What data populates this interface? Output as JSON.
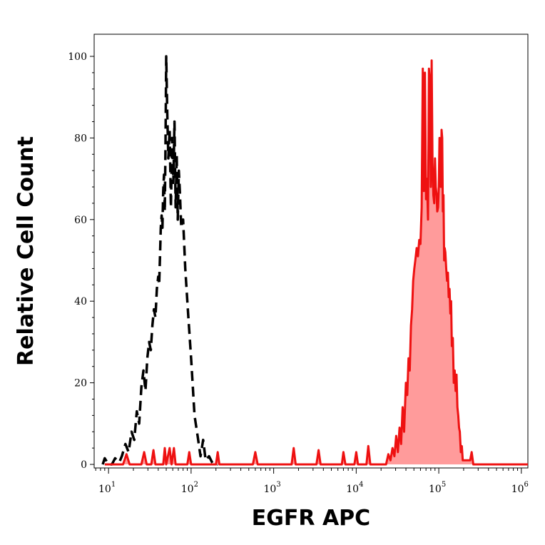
{
  "chart_data": {
    "type": "line",
    "title": "",
    "xlabel": "EGFR APC",
    "ylabel": "Relative Cell Count",
    "x_scale": "log",
    "xlim": [
      6.7,
      1200000
    ],
    "ylim": [
      0,
      100
    ],
    "grid": false,
    "legend": "none",
    "x_ticks": [
      {
        "value": 10,
        "base": "10",
        "exp": "1"
      },
      {
        "value": 100,
        "base": "10",
        "exp": "2"
      },
      {
        "value": 1000,
        "base": "10",
        "exp": "3"
      },
      {
        "value": 10000,
        "base": "10",
        "exp": "4"
      },
      {
        "value": 100000,
        "base": "10",
        "exp": "5"
      },
      {
        "value": 1000000,
        "base": "10",
        "exp": "6"
      }
    ],
    "y_ticks": [
      {
        "value": 0,
        "label": "0"
      },
      {
        "value": 20,
        "label": "20"
      },
      {
        "value": 40,
        "label": "40"
      },
      {
        "value": 60,
        "label": "60"
      },
      {
        "value": 80,
        "label": "80"
      },
      {
        "value": 100,
        "label": "100"
      }
    ],
    "series": [
      {
        "style": "dashed",
        "color": "#000000",
        "fill": "none",
        "points": [
          [
            8.5,
            0
          ],
          [
            9,
            1.5
          ],
          [
            10,
            0
          ],
          [
            11,
            0
          ],
          [
            12,
            1.5
          ],
          [
            13.5,
            0.5
          ],
          [
            14.5,
            2
          ],
          [
            16,
            5
          ],
          [
            17.5,
            3
          ],
          [
            19,
            8
          ],
          [
            20.5,
            6
          ],
          [
            22,
            13
          ],
          [
            23.5,
            10
          ],
          [
            25,
            19
          ],
          [
            26.5,
            23
          ],
          [
            28,
            18
          ],
          [
            29.5,
            26
          ],
          [
            31,
            30
          ],
          [
            32.5,
            28
          ],
          [
            34,
            34
          ],
          [
            35.5,
            38
          ],
          [
            37,
            36
          ],
          [
            38.5,
            43
          ],
          [
            40,
            46
          ],
          [
            41,
            44
          ],
          [
            42,
            51
          ],
          [
            43,
            58
          ],
          [
            44,
            61
          ],
          [
            45,
            58
          ],
          [
            46,
            67
          ],
          [
            47,
            71
          ],
          [
            48,
            62
          ],
          [
            49,
            78
          ],
          [
            50,
            100
          ],
          [
            51.5,
            86
          ],
          [
            53,
            75
          ],
          [
            55,
            82
          ],
          [
            57,
            63
          ],
          [
            59,
            80
          ],
          [
            61,
            69
          ],
          [
            63,
            84
          ],
          [
            65,
            63
          ],
          [
            67,
            76
          ],
          [
            69,
            60
          ],
          [
            71,
            72
          ],
          [
            73,
            67
          ],
          [
            76,
            58
          ],
          [
            80,
            60
          ],
          [
            85,
            48
          ],
          [
            92,
            37
          ],
          [
            100,
            26
          ],
          [
            110,
            12
          ],
          [
            120,
            7
          ],
          [
            130,
            2
          ],
          [
            140,
            6
          ],
          [
            150,
            1
          ],
          [
            165,
            2
          ],
          [
            185,
            0
          ],
          [
            210,
            0
          ]
        ]
      },
      {
        "style": "solid",
        "color": "#ee1111",
        "fill": "#ff9b9b",
        "points": [
          [
            9,
            0
          ],
          [
            15,
            0
          ],
          [
            16.5,
            2.5
          ],
          [
            18,
            0
          ],
          [
            25,
            0
          ],
          [
            27,
            3
          ],
          [
            29,
            0
          ],
          [
            33,
            0
          ],
          [
            35,
            3.5
          ],
          [
            37,
            0
          ],
          [
            46,
            0
          ],
          [
            48,
            4
          ],
          [
            50,
            0
          ],
          [
            55,
            4
          ],
          [
            58,
            0
          ],
          [
            62,
            4
          ],
          [
            65,
            0
          ],
          [
            90,
            0
          ],
          [
            95,
            3
          ],
          [
            100,
            0
          ],
          [
            200,
            0
          ],
          [
            210,
            3
          ],
          [
            220,
            0
          ],
          [
            560,
            0
          ],
          [
            600,
            3
          ],
          [
            640,
            0
          ],
          [
            1650,
            0
          ],
          [
            1750,
            4
          ],
          [
            1850,
            0
          ],
          [
            3300,
            0
          ],
          [
            3500,
            3.5
          ],
          [
            3700,
            0
          ],
          [
            6700,
            0
          ],
          [
            7000,
            3
          ],
          [
            7400,
            0
          ],
          [
            9500,
            0
          ],
          [
            10000,
            3
          ],
          [
            10500,
            0
          ],
          [
            13300,
            0
          ],
          [
            14000,
            4.5
          ],
          [
            14800,
            0
          ],
          [
            23000,
            0
          ],
          [
            24500,
            2.5
          ],
          [
            26000,
            1
          ],
          [
            27500,
            4
          ],
          [
            29000,
            2
          ],
          [
            30500,
            7
          ],
          [
            32000,
            3
          ],
          [
            33500,
            9
          ],
          [
            35000,
            5
          ],
          [
            36500,
            14
          ],
          [
            38000,
            8
          ],
          [
            40000,
            20
          ],
          [
            41500,
            17
          ],
          [
            43000,
            26
          ],
          [
            44500,
            23
          ],
          [
            46000,
            34
          ],
          [
            47500,
            38
          ],
          [
            49000,
            45
          ],
          [
            50500,
            48
          ],
          [
            52000,
            50
          ],
          [
            54000,
            53
          ],
          [
            56000,
            51
          ],
          [
            58000,
            55
          ],
          [
            60000,
            54
          ],
          [
            62000,
            63
          ],
          [
            64000,
            97
          ],
          [
            66000,
            67
          ],
          [
            68000,
            96
          ],
          [
            70000,
            65
          ],
          [
            72000,
            70
          ],
          [
            74000,
            60
          ],
          [
            76000,
            97
          ],
          [
            78000,
            94
          ],
          [
            80000,
            68
          ],
          [
            82000,
            99
          ],
          [
            84000,
            74
          ],
          [
            86000,
            66
          ],
          [
            88000,
            64
          ],
          [
            90000,
            75
          ],
          [
            92000,
            68
          ],
          [
            94000,
            66
          ],
          [
            96000,
            62
          ],
          [
            98000,
            63
          ],
          [
            100000,
            68
          ],
          [
            102000,
            80
          ],
          [
            104000,
            77
          ],
          [
            106000,
            68
          ],
          [
            108000,
            82
          ],
          [
            110000,
            80
          ],
          [
            112000,
            62
          ],
          [
            114000,
            66
          ],
          [
            116000,
            50
          ],
          [
            118000,
            53
          ],
          [
            120000,
            52
          ],
          [
            123000,
            48
          ],
          [
            126000,
            45
          ],
          [
            129000,
            47
          ],
          [
            132000,
            41
          ],
          [
            135000,
            43
          ],
          [
            138000,
            37
          ],
          [
            141000,
            40
          ],
          [
            144000,
            29
          ],
          [
            148000,
            31
          ],
          [
            152000,
            20
          ],
          [
            156000,
            23
          ],
          [
            160000,
            18
          ],
          [
            164000,
            22
          ],
          [
            168000,
            14
          ],
          [
            172000,
            12
          ],
          [
            176000,
            9
          ],
          [
            180000,
            8
          ],
          [
            185000,
            3
          ],
          [
            190000,
            4.5
          ],
          [
            195000,
            1
          ],
          [
            200000,
            1
          ],
          [
            240000,
            1
          ],
          [
            250000,
            3
          ],
          [
            262000,
            0
          ],
          [
            1200000,
            0
          ]
        ]
      }
    ]
  }
}
